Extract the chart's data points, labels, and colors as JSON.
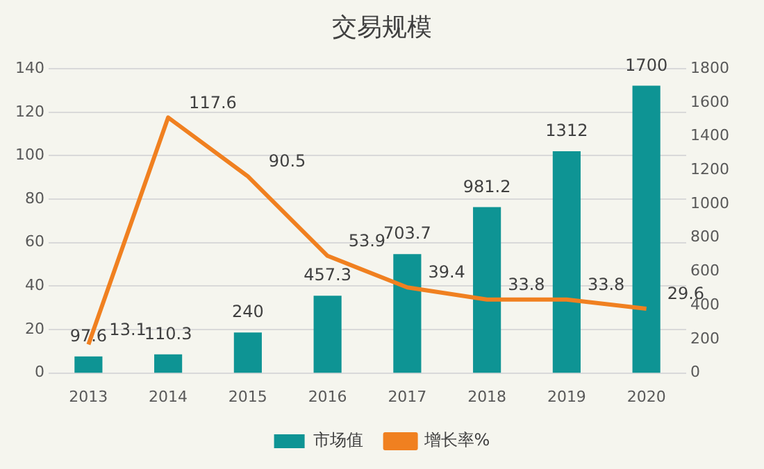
{
  "chart_data": {
    "type": "bar",
    "title": "交易规模",
    "categories": [
      "2013",
      "2014",
      "2015",
      "2016",
      "2017",
      "2018",
      "2019",
      "2020"
    ],
    "series": [
      {
        "name": "市场值",
        "axis": "y2",
        "color": "#0e9494",
        "values": [
          97.6,
          110.3,
          240,
          457.3,
          703.7,
          981.2,
          1312,
          1700
        ]
      },
      {
        "name": "增长率%",
        "type": "line",
        "axis": "y",
        "color": "#f08020",
        "values": [
          13.1,
          117.6,
          90.5,
          53.9,
          39.4,
          33.8,
          33.8,
          29.6
        ]
      }
    ],
    "ylim": [
      0,
      140
    ],
    "yticks": [
      0,
      20,
      40,
      60,
      80,
      100,
      120,
      140
    ],
    "y2lim": [
      0,
      1800
    ],
    "y2ticks": [
      0,
      200,
      400,
      600,
      800,
      1000,
      1200,
      1400,
      1600,
      1800
    ],
    "grid": "y",
    "legend": "bottom",
    "data_labels": true,
    "marker": "none"
  }
}
